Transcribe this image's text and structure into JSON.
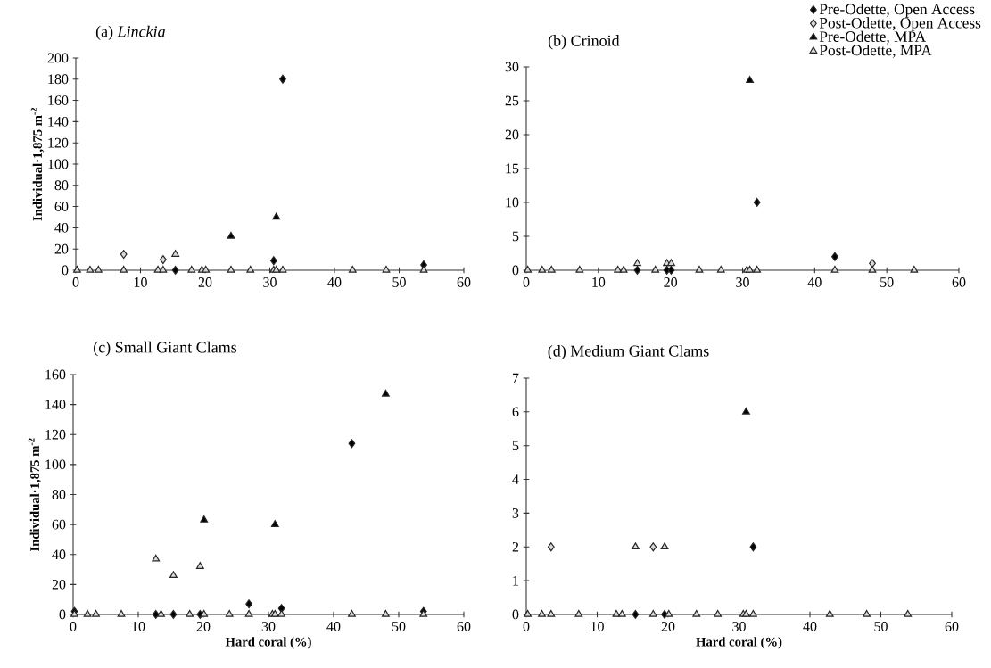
{
  "chart_data": [
    {
      "type": "scatter",
      "title": "(a) *Linckia*",
      "ylabel": "Individual·1,875 m$^{-2}$",
      "x": [
        0.2,
        2.2,
        3.5,
        7.4,
        12.7,
        13.5,
        15.4,
        17.9,
        19.5,
        20.1,
        24.0,
        27.0,
        30.6,
        31.0,
        32.0,
        42.8,
        48.0,
        53.8
      ],
      "xlim": [
        0,
        60
      ],
      "xticks": [
        0,
        10,
        20,
        30,
        40,
        50,
        60
      ],
      "ylim": [
        0,
        200
      ],
      "yticks": [
        0,
        20,
        40,
        60,
        80,
        100,
        120,
        140,
        160,
        180,
        200
      ],
      "grid": false,
      "legend": false,
      "series": [
        {
          "marker": "diamond",
          "color": "#000000",
          "values": [
            null,
            null,
            null,
            null,
            null,
            null,
            0,
            null,
            null,
            null,
            null,
            null,
            9,
            null,
            180,
            null,
            null,
            5
          ]
        },
        {
          "marker": "diamond",
          "color": "#d9d9d9",
          "values": [
            null,
            null,
            null,
            15,
            null,
            10,
            null,
            null,
            null,
            null,
            null,
            null,
            null,
            null,
            null,
            null,
            null,
            null
          ]
        },
        {
          "marker": "triangle",
          "color": "#000000",
          "values": [
            null,
            null,
            null,
            null,
            null,
            null,
            null,
            null,
            null,
            null,
            32,
            null,
            null,
            50,
            null,
            null,
            null,
            null
          ]
        },
        {
          "marker": "triangle",
          "color": "#d9d9d9",
          "values": [
            0,
            0,
            0,
            0,
            0,
            0,
            15,
            0,
            0,
            0,
            0,
            0,
            0,
            0,
            0,
            0,
            0,
            0
          ]
        }
      ]
    },
    {
      "type": "scatter",
      "title": "(b) Crinoid",
      "x": [
        0.2,
        2.2,
        3.5,
        7.4,
        12.7,
        13.5,
        15.4,
        17.9,
        19.5,
        20.1,
        24.0,
        27.0,
        30.6,
        31.0,
        32.0,
        42.8,
        48.0,
        53.8
      ],
      "xlim": [
        0,
        60
      ],
      "xticks": [
        0,
        10,
        20,
        30,
        40,
        50,
        60
      ],
      "ylim": [
        0,
        30
      ],
      "yticks": [
        0,
        5,
        10,
        15,
        20,
        25,
        30
      ],
      "grid": false,
      "legend": "top right",
      "series": [
        {
          "name": "Pre-Odette, Open Access",
          "marker": "diamond",
          "color": "#000000",
          "values": [
            null,
            null,
            null,
            null,
            null,
            null,
            0,
            null,
            0,
            0,
            null,
            null,
            null,
            null,
            10,
            2,
            null,
            null
          ]
        },
        {
          "name": "Post-Odette, Open Access",
          "marker": "diamond",
          "color": "#d9d9d9",
          "values": [
            null,
            null,
            null,
            null,
            null,
            null,
            null,
            null,
            null,
            null,
            null,
            null,
            null,
            null,
            null,
            null,
            1,
            null
          ]
        },
        {
          "name": "Pre-Odette, MPA",
          "marker": "triangle",
          "color": "#000000",
          "values": [
            null,
            null,
            null,
            null,
            null,
            null,
            null,
            null,
            null,
            null,
            null,
            null,
            null,
            28,
            null,
            null,
            null,
            null
          ]
        },
        {
          "name": "Post-Odette, MPA",
          "marker": "triangle",
          "color": "#d9d9d9",
          "values": [
            0,
            0,
            0,
            0,
            0,
            0,
            1,
            0,
            1,
            1,
            0,
            0,
            0,
            0,
            0,
            0,
            0,
            0
          ]
        }
      ]
    },
    {
      "type": "scatter",
      "title": "(c) Small Giant Clams",
      "ylabel": "Individual·1,875 m$^{-2}$",
      "xlabel": "Hard coral (%)",
      "x": [
        0.2,
        2.2,
        3.5,
        7.4,
        12.7,
        13.5,
        15.4,
        17.9,
        19.5,
        20.1,
        24.0,
        27.0,
        30.6,
        31.0,
        32.0,
        42.8,
        48.0,
        53.8
      ],
      "xlim": [
        0,
        60
      ],
      "xticks": [
        0,
        10,
        20,
        30,
        40,
        50,
        60
      ],
      "ylim": [
        0,
        160
      ],
      "yticks": [
        0,
        20,
        40,
        60,
        80,
        100,
        120,
        140,
        160
      ],
      "grid": false,
      "legend": false,
      "series": [
        {
          "marker": "diamond",
          "color": "#000000",
          "values": [
            2,
            null,
            null,
            null,
            0,
            null,
            0,
            null,
            0,
            null,
            null,
            7,
            null,
            null,
            4,
            114,
            null,
            2
          ]
        },
        {
          "marker": "triangle",
          "color": "#000000",
          "values": [
            null,
            null,
            null,
            null,
            null,
            null,
            null,
            null,
            null,
            63,
            null,
            null,
            null,
            60,
            null,
            null,
            147,
            null
          ]
        },
        {
          "marker": "triangle",
          "color": "#d9d9d9",
          "values": [
            0,
            0,
            0,
            0,
            37,
            0,
            26,
            0,
            32,
            0,
            0,
            0,
            0,
            0,
            0,
            0,
            0,
            0
          ]
        }
      ]
    },
    {
      "type": "scatter",
      "title": "(d) Medium Giant Clams",
      "xlabel": "Hard coral (%)",
      "x": [
        0.2,
        2.2,
        3.5,
        7.4,
        12.7,
        13.5,
        15.4,
        17.9,
        19.5,
        20.1,
        24.0,
        27.0,
        30.6,
        31.0,
        32.0,
        42.8,
        48.0,
        53.8
      ],
      "xlim": [
        0,
        60
      ],
      "xticks": [
        0,
        10,
        20,
        30,
        40,
        50,
        60
      ],
      "ylim": [
        0,
        7
      ],
      "yticks": [
        0,
        1,
        2,
        3,
        4,
        5,
        6,
        7
      ],
      "grid": false,
      "legend": false,
      "series": [
        {
          "marker": "diamond",
          "color": "#000000",
          "values": [
            null,
            null,
            null,
            null,
            null,
            null,
            0,
            null,
            0,
            null,
            null,
            null,
            null,
            null,
            2,
            null,
            null,
            null
          ]
        },
        {
          "marker": "diamond",
          "color": "#d9d9d9",
          "values": [
            null,
            null,
            2,
            null,
            null,
            null,
            null,
            2,
            null,
            null,
            null,
            null,
            null,
            null,
            null,
            null,
            null,
            null
          ]
        },
        {
          "marker": "triangle",
          "color": "#000000",
          "values": [
            null,
            null,
            null,
            null,
            null,
            null,
            null,
            null,
            null,
            null,
            null,
            null,
            null,
            6,
            null,
            null,
            null,
            null
          ]
        },
        {
          "marker": "triangle",
          "color": "#d9d9d9",
          "values": [
            0,
            0,
            0,
            0,
            0,
            0,
            2,
            0,
            2,
            0,
            0,
            0,
            0,
            0,
            0,
            0,
            0,
            0
          ]
        }
      ]
    }
  ]
}
